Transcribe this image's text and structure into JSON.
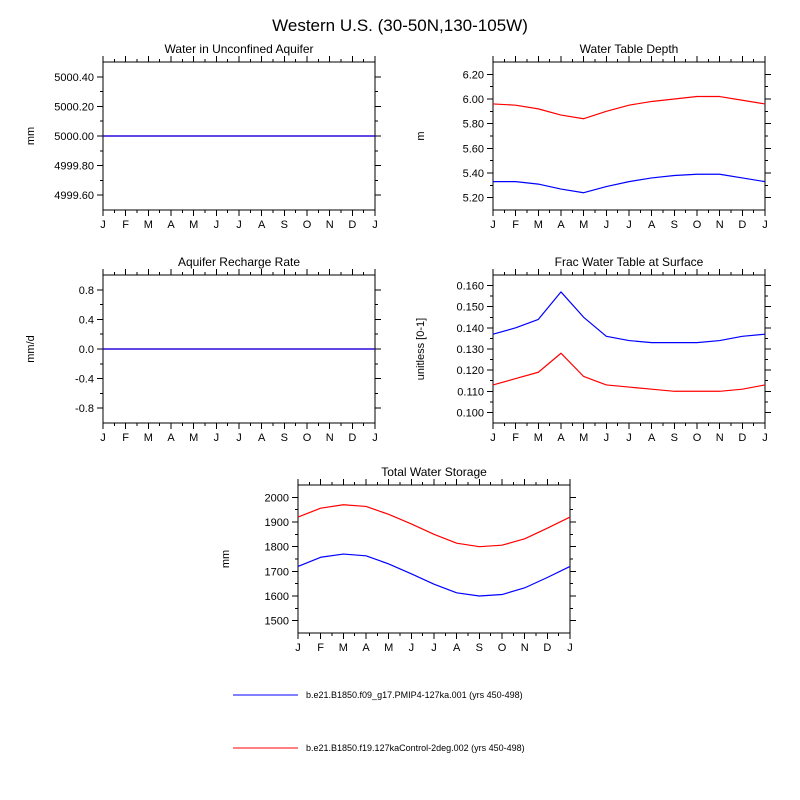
{
  "page_title": "Western U.S. (30-50N,130-105W)",
  "months": [
    "J",
    "F",
    "M",
    "A",
    "M",
    "J",
    "J",
    "A",
    "S",
    "O",
    "N",
    "D",
    "J"
  ],
  "colors": {
    "blue": "#0000ff",
    "red": "#ff0000",
    "axis": "#000000",
    "background": "#ffffff"
  },
  "legend": {
    "items": [
      {
        "label": "b.e21.B1850.f09_g17.PMIP4-127ka.001 (yrs 450-498)",
        "color": "#0000ff"
      },
      {
        "label": "b.e21.B1850.f19.127kaControl-2deg.002 (yrs 450-498)",
        "color": "#ff0000"
      }
    ]
  },
  "chart_data": [
    {
      "type": "line",
      "title": "Water in Unconfined Aquifer",
      "xlabel": "",
      "ylabel": "mm",
      "ylim": [
        4999.5,
        5000.5
      ],
      "yticks": [
        4999.6,
        4999.8,
        5000.0,
        5000.2,
        5000.4
      ],
      "ytick_labels": [
        "4999.60",
        "4999.80",
        "5000.00",
        "5000.20",
        "5000.40"
      ],
      "categories": [
        "J",
        "F",
        "M",
        "A",
        "M",
        "J",
        "J",
        "A",
        "S",
        "O",
        "N",
        "D",
        "J"
      ],
      "grid": false,
      "series": [
        {
          "name": "PMIP4-127ka.001",
          "color": "#0000ff",
          "values": [
            5000.0,
            5000.0,
            5000.0,
            5000.0,
            5000.0,
            5000.0,
            5000.0,
            5000.0,
            5000.0,
            5000.0,
            5000.0,
            5000.0,
            5000.0
          ]
        },
        {
          "name": "127kaControl-2deg.002",
          "color": "#ff0000",
          "values": [
            5000.0,
            5000.0,
            5000.0,
            5000.0,
            5000.0,
            5000.0,
            5000.0,
            5000.0,
            5000.0,
            5000.0,
            5000.0,
            5000.0,
            5000.0
          ]
        }
      ]
    },
    {
      "type": "line",
      "title": "Water Table Depth",
      "xlabel": "",
      "ylabel": "m",
      "ylim": [
        5.1,
        6.3
      ],
      "yticks": [
        5.2,
        5.4,
        5.6,
        5.8,
        6.0,
        6.2
      ],
      "ytick_labels": [
        "5.20",
        "5.40",
        "5.60",
        "5.80",
        "6.00",
        "6.20"
      ],
      "categories": [
        "J",
        "F",
        "M",
        "A",
        "M",
        "J",
        "J",
        "A",
        "S",
        "O",
        "N",
        "D",
        "J"
      ],
      "grid": false,
      "series": [
        {
          "name": "PMIP4-127ka.001",
          "color": "#0000ff",
          "values": [
            5.33,
            5.33,
            5.31,
            5.27,
            5.24,
            5.29,
            5.33,
            5.36,
            5.38,
            5.39,
            5.39,
            5.36,
            5.33
          ]
        },
        {
          "name": "127kaControl-2deg.002",
          "color": "#ff0000",
          "values": [
            5.96,
            5.95,
            5.92,
            5.87,
            5.84,
            5.9,
            5.95,
            5.98,
            6.0,
            6.02,
            6.02,
            5.99,
            5.96
          ]
        }
      ]
    },
    {
      "type": "line",
      "title": "Aquifer Recharge Rate",
      "xlabel": "",
      "ylabel": "mm/d",
      "ylim": [
        -1.0,
        1.0
      ],
      "yticks": [
        -0.8,
        -0.4,
        0.0,
        0.4,
        0.8
      ],
      "ytick_labels": [
        "-0.8",
        "-0.4",
        "0.0",
        "0.4",
        "0.8"
      ],
      "categories": [
        "J",
        "F",
        "M",
        "A",
        "M",
        "J",
        "J",
        "A",
        "S",
        "O",
        "N",
        "D",
        "J"
      ],
      "grid": false,
      "series": [
        {
          "name": "PMIP4-127ka.001",
          "color": "#0000ff",
          "values": [
            0.0,
            0.0,
            0.0,
            0.0,
            0.0,
            0.0,
            0.0,
            0.0,
            0.0,
            0.0,
            0.0,
            0.0,
            0.0
          ]
        },
        {
          "name": "127kaControl-2deg.002",
          "color": "#ff0000",
          "values": [
            0.0,
            0.0,
            0.0,
            0.0,
            0.0,
            0.0,
            0.0,
            0.0,
            0.0,
            0.0,
            0.0,
            0.0,
            0.0
          ]
        }
      ]
    },
    {
      "type": "line",
      "title": "Frac Water Table at Surface",
      "xlabel": "",
      "ylabel": "unitless [0-1]",
      "ylim": [
        0.095,
        0.165
      ],
      "yticks": [
        0.1,
        0.11,
        0.12,
        0.13,
        0.14,
        0.15,
        0.16
      ],
      "ytick_labels": [
        "0.100",
        "0.110",
        "0.120",
        "0.130",
        "0.140",
        "0.150",
        "0.160"
      ],
      "categories": [
        "J",
        "F",
        "M",
        "A",
        "M",
        "J",
        "J",
        "A",
        "S",
        "O",
        "N",
        "D",
        "J"
      ],
      "grid": false,
      "series": [
        {
          "name": "PMIP4-127ka.001",
          "color": "#0000ff",
          "values": [
            0.137,
            0.14,
            0.144,
            0.157,
            0.145,
            0.136,
            0.134,
            0.133,
            0.133,
            0.133,
            0.134,
            0.136,
            0.137
          ]
        },
        {
          "name": "127kaControl-2deg.002",
          "color": "#ff0000",
          "values": [
            0.113,
            0.116,
            0.119,
            0.128,
            0.117,
            0.113,
            0.112,
            0.111,
            0.11,
            0.11,
            0.11,
            0.111,
            0.113
          ]
        }
      ]
    },
    {
      "type": "line",
      "title": "Total Water Storage",
      "xlabel": "",
      "ylabel": "mm",
      "ylim": [
        1450,
        2050
      ],
      "yticks": [
        1500,
        1600,
        1700,
        1800,
        1900,
        2000
      ],
      "ytick_labels": [
        "1500",
        "1600",
        "1700",
        "1800",
        "1900",
        "2000"
      ],
      "categories": [
        "J",
        "F",
        "M",
        "A",
        "M",
        "J",
        "J",
        "A",
        "S",
        "O",
        "N",
        "D",
        "J"
      ],
      "grid": false,
      "series": [
        {
          "name": "PMIP4-127ka.001",
          "color": "#0000ff",
          "values": [
            1720,
            1757,
            1770,
            1763,
            1730,
            1690,
            1648,
            1613,
            1600,
            1606,
            1633,
            1675,
            1720
          ]
        },
        {
          "name": "127kaControl-2deg.002",
          "color": "#ff0000",
          "values": [
            1920,
            1956,
            1970,
            1963,
            1931,
            1892,
            1850,
            1814,
            1800,
            1806,
            1832,
            1875,
            1920
          ]
        }
      ]
    }
  ]
}
